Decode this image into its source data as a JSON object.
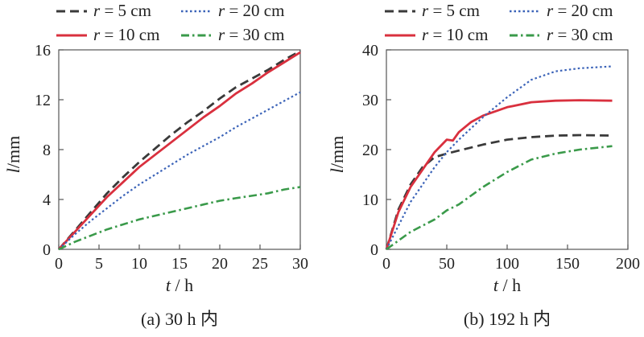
{
  "chart_data": [
    {
      "type": "line",
      "caption": "(a) 30 h 内",
      "xlabel": "t",
      "xunit": "h",
      "ylabel": "l",
      "yunit": "mm",
      "xlim": [
        0,
        30
      ],
      "ylim": [
        0,
        16
      ],
      "xticks": [
        0,
        5,
        10,
        15,
        20,
        25,
        30
      ],
      "yticks": [
        0,
        4,
        8,
        12,
        16
      ],
      "legend": "top",
      "grid": false,
      "series": [
        {
          "name": "r = 5 cm",
          "color": "#3a3a3a",
          "dash": "dash",
          "x": [
            0,
            2,
            4,
            6,
            8,
            10,
            12,
            14,
            16,
            18,
            20,
            22,
            24,
            26,
            28,
            30
          ],
          "y": [
            0,
            1.5,
            3.0,
            4.5,
            5.8,
            7.0,
            8.1,
            9.2,
            10.2,
            11.1,
            12.1,
            13.0,
            13.7,
            14.4,
            15.2,
            15.9
          ]
        },
        {
          "name": "r = 10 cm",
          "color": "#d9303e",
          "dash": "solid",
          "x": [
            0,
            2,
            4,
            6,
            8,
            10,
            12,
            14,
            16,
            18,
            20,
            22,
            24,
            26,
            28,
            30
          ],
          "y": [
            0,
            1.4,
            2.8,
            4.2,
            5.4,
            6.6,
            7.6,
            8.6,
            9.6,
            10.6,
            11.5,
            12.5,
            13.3,
            14.2,
            15.0,
            15.8
          ]
        },
        {
          "name": "r = 20 cm",
          "color": "#3b63b8",
          "dash": "dot",
          "x": [
            0,
            2,
            4,
            6,
            8,
            10,
            12,
            14,
            16,
            18,
            20,
            22,
            24,
            26,
            28,
            30
          ],
          "y": [
            0,
            1.2,
            2.3,
            3.3,
            4.3,
            5.2,
            6.0,
            6.8,
            7.6,
            8.3,
            9.0,
            9.8,
            10.5,
            11.2,
            11.9,
            12.6
          ]
        },
        {
          "name": "r = 30 cm",
          "color": "#3a9a4a",
          "dash": "dashdot",
          "x": [
            0,
            2,
            4,
            6,
            8,
            10,
            12,
            14,
            16,
            18,
            20,
            22,
            24,
            26,
            28,
            30
          ],
          "y": [
            0,
            0.6,
            1.1,
            1.6,
            2.0,
            2.4,
            2.7,
            3.0,
            3.3,
            3.6,
            3.9,
            4.1,
            4.3,
            4.5,
            4.8,
            5.0
          ]
        }
      ]
    },
    {
      "type": "line",
      "caption": "(b) 192 h 内",
      "xlabel": "t",
      "xunit": "h",
      "ylabel": "l",
      "yunit": "mm",
      "xlim": [
        0,
        200
      ],
      "ylim": [
        0,
        40
      ],
      "xticks": [
        0,
        50,
        100,
        150,
        200
      ],
      "yticks": [
        0,
        10,
        20,
        30,
        40
      ],
      "legend": "top",
      "grid": false,
      "series": [
        {
          "name": "r = 5 cm",
          "color": "#3a3a3a",
          "dash": "dash",
          "x": [
            0,
            10,
            20,
            30,
            40,
            50,
            60,
            80,
            100,
            120,
            140,
            160,
            187
          ],
          "y": [
            0,
            8.0,
            13.0,
            16.5,
            18.5,
            19.2,
            19.8,
            21.0,
            22.0,
            22.5,
            22.8,
            22.9,
            22.8
          ]
        },
        {
          "name": "r = 10 cm",
          "color": "#d9303e",
          "dash": "solid",
          "x": [
            0,
            10,
            20,
            30,
            40,
            50,
            55,
            60,
            70,
            80,
            100,
            120,
            140,
            160,
            187
          ],
          "y": [
            0,
            7.5,
            12.5,
            16.0,
            19.5,
            22.0,
            21.8,
            23.5,
            25.5,
            26.8,
            28.5,
            29.5,
            29.8,
            29.9,
            29.8
          ]
        },
        {
          "name": "r = 20 cm",
          "color": "#3b63b8",
          "dash": "dot",
          "x": [
            0,
            20,
            40,
            50,
            60,
            80,
            100,
            120,
            140,
            160,
            187
          ],
          "y": [
            0,
            9.5,
            16.5,
            19.5,
            22.0,
            26.5,
            30.5,
            34.0,
            35.7,
            36.3,
            36.7
          ]
        },
        {
          "name": "r = 30 cm",
          "color": "#3a9a4a",
          "dash": "dashdot",
          "x": [
            0,
            20,
            40,
            50,
            60,
            80,
            100,
            120,
            140,
            160,
            187
          ],
          "y": [
            0,
            3.5,
            6.0,
            7.8,
            9.0,
            12.5,
            15.5,
            18.0,
            19.2,
            20.0,
            20.7
          ]
        }
      ]
    }
  ]
}
